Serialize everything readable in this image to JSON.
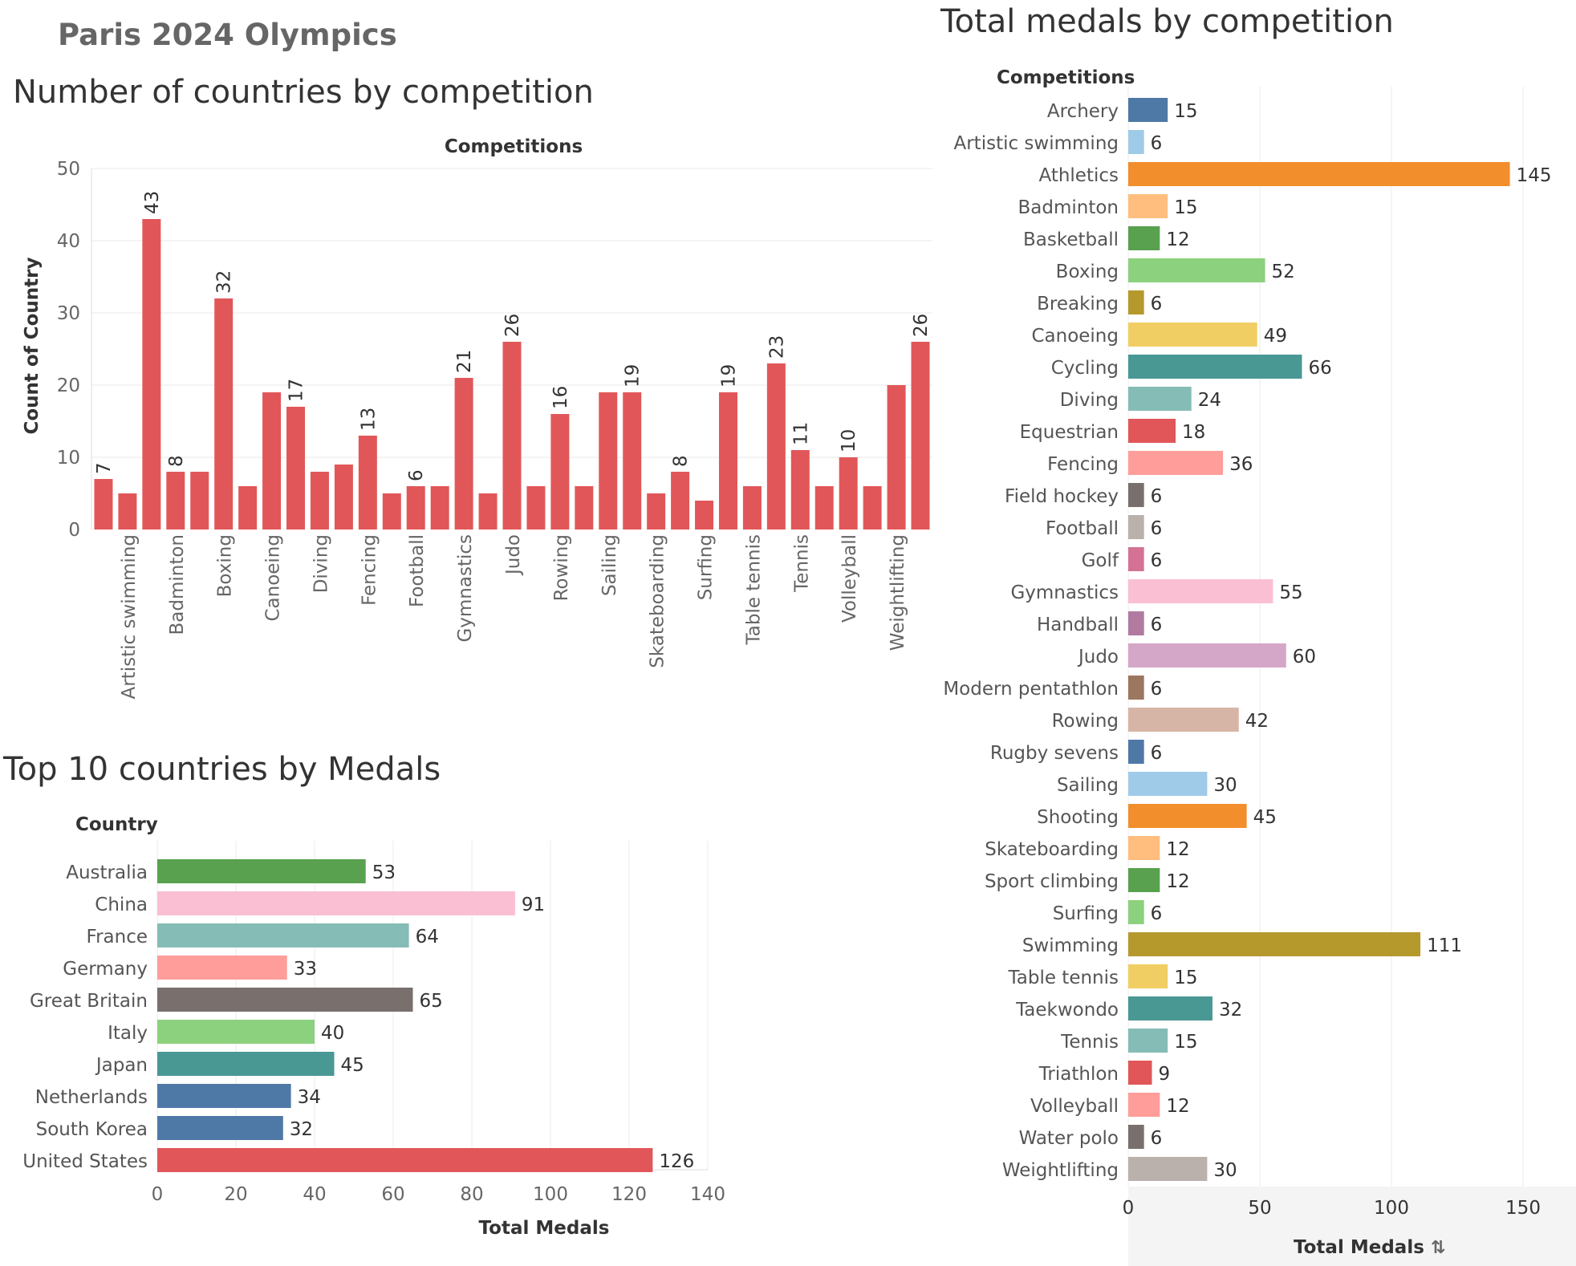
{
  "dashboard_title": "Paris 2024 Olympics",
  "charts": {
    "countries": {
      "title": "Number of countries by competition",
      "header": "Competitions",
      "ylabel": "Count of Country"
    },
    "top10": {
      "title": "Top 10 countries by Medals",
      "header": "Country",
      "xlabel": "Total Medals"
    },
    "total": {
      "title": "Total medals by competition",
      "header": "Competitions",
      "xlabel": "Total Medals",
      "sort_icon": "sort-descending-icon"
    }
  },
  "chart_data": [
    {
      "type": "bar",
      "title": "Number of countries by competition",
      "column_header": "Competitions",
      "ylabel": "Count of Country",
      "ylim": [
        0,
        50
      ],
      "yticks": [
        0,
        10,
        20,
        30,
        40,
        50
      ],
      "grid": true,
      "bar_color": "#e15759",
      "categories": [
        "",
        "Artistic swimming",
        "",
        "Badminton",
        "",
        "Boxing",
        "",
        "Canoeing",
        "",
        "Diving",
        "",
        "Fencing",
        "",
        "Football",
        "",
        "Gymnastics",
        "",
        "Judo",
        "",
        "Rowing",
        "",
        "Sailing",
        "",
        "Skateboarding",
        "",
        "Surfing",
        "",
        "Table tennis",
        "",
        "Tennis",
        "",
        "Volleyball",
        "",
        "Weightlifting",
        ""
      ],
      "values": [
        7,
        5,
        43,
        8,
        8,
        32,
        6,
        19,
        17,
        8,
        9,
        13,
        5,
        6,
        6,
        21,
        5,
        26,
        6,
        16,
        6,
        19,
        19,
        5,
        8,
        4,
        19,
        6,
        23,
        11,
        6,
        10,
        6,
        20,
        26
      ],
      "data_labels": [
        "7",
        "",
        "43",
        "8",
        "",
        "32",
        "",
        "",
        "17",
        "",
        "",
        "13",
        "",
        "6",
        "",
        "21",
        "",
        "26",
        "",
        "16",
        "",
        "",
        "19",
        "",
        "8",
        "",
        "19",
        "",
        "23",
        "11",
        "",
        "10",
        "",
        "",
        "26"
      ]
    },
    {
      "type": "bar",
      "orientation": "horizontal",
      "title": "Top 10 countries by Medals",
      "row_header": "Country",
      "xlabel": "Total Medals",
      "xlim": [
        0,
        140
      ],
      "xticks": [
        0,
        20,
        40,
        60,
        80,
        100,
        120,
        140
      ],
      "grid": true,
      "categories": [
        "Australia",
        "China",
        "France",
        "Germany",
        "Great Britain",
        "Italy",
        "Japan",
        "Netherlands",
        "South Korea",
        "United States"
      ],
      "values": [
        53,
        91,
        64,
        33,
        65,
        40,
        45,
        34,
        32,
        126
      ],
      "colors": [
        "#59a14f",
        "#fabfd2",
        "#86bcb6",
        "#ff9d9a",
        "#79706e",
        "#8cd17d",
        "#499894",
        "#4e79a7",
        "#4e79a7",
        "#e15759"
      ]
    },
    {
      "type": "bar",
      "orientation": "horizontal",
      "title": "Total medals by competition",
      "row_header": "Competitions",
      "xlabel": "Total Medals",
      "xlim": [
        0,
        150
      ],
      "xticks": [
        0,
        50,
        100,
        150
      ],
      "grid": true,
      "categories": [
        "Archery",
        "Artistic swimming",
        "Athletics",
        "Badminton",
        "Basketball",
        "Boxing",
        "Breaking",
        "Canoeing",
        "Cycling",
        "Diving",
        "Equestrian",
        "Fencing",
        "Field hockey",
        "Football",
        "Golf",
        "Gymnastics",
        "Handball",
        "Judo",
        "Modern pentathlon",
        "Rowing",
        "Rugby sevens",
        "Sailing",
        "Shooting",
        "Skateboarding",
        "Sport climbing",
        "Surfing",
        "Swimming",
        "Table tennis",
        "Taekwondo",
        "Tennis",
        "Triathlon",
        "Volleyball",
        "Water polo",
        "Weightlifting"
      ],
      "values": [
        15,
        6,
        145,
        15,
        12,
        52,
        6,
        49,
        66,
        24,
        18,
        36,
        6,
        6,
        6,
        55,
        6,
        60,
        6,
        42,
        6,
        30,
        45,
        12,
        12,
        6,
        111,
        15,
        32,
        15,
        9,
        12,
        6,
        30
      ],
      "colors": [
        "#4e79a7",
        "#a0cbe8",
        "#f28e2b",
        "#ffbe7d",
        "#59a14f",
        "#8cd17d",
        "#b6992d",
        "#f1ce63",
        "#499894",
        "#86bcb6",
        "#e15759",
        "#ff9d9a",
        "#79706e",
        "#bab0ac",
        "#d37295",
        "#fabfd2",
        "#b07aa1",
        "#d4a6c8",
        "#9d7660",
        "#d7b5a6",
        "#4e79a7",
        "#a0cbe8",
        "#f28e2b",
        "#ffbe7d",
        "#59a14f",
        "#8cd17d",
        "#b6992d",
        "#f1ce63",
        "#499894",
        "#86bcb6",
        "#e15759",
        "#ff9d9a",
        "#79706e",
        "#bab0ac"
      ]
    }
  ]
}
